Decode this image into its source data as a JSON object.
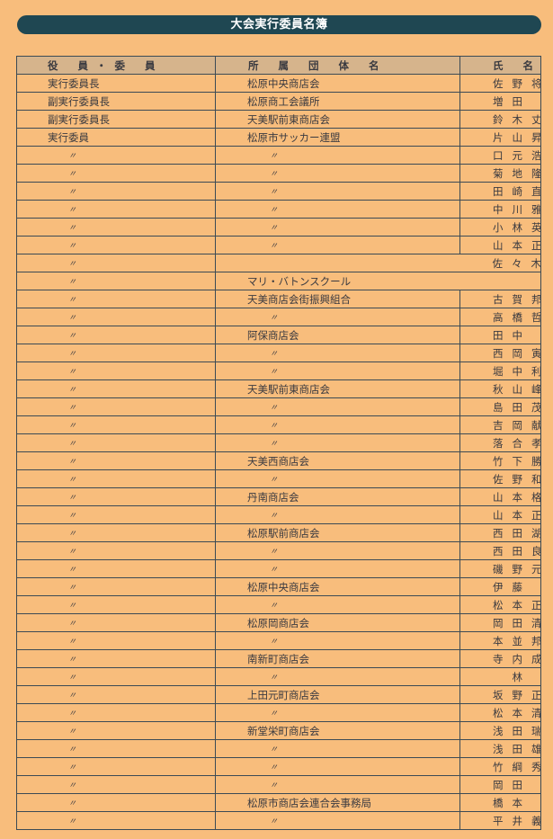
{
  "title": "大会実行委員名簿",
  "headers": [
    "役 員・委 員",
    "所 属 団 体 名",
    "氏 名"
  ],
  "rows": [
    [
      "実行委員長",
      "松原中央商店会",
      "佐野将身"
    ],
    [
      "副実行委員長",
      "松原商工会議所",
      "増田　穎"
    ],
    [
      "副実行委員長",
      "天美駅前東商店会",
      "鈴木丈夫"
    ],
    [
      "実行委員",
      "松原市サッカー連盟",
      "片山昇一"
    ],
    [
      "〃",
      "〃",
      "口元浩二"
    ],
    [
      "〃",
      "〃",
      "菊地隆之"
    ],
    [
      "〃",
      "〃",
      "田崎直子"
    ],
    [
      "〃",
      "〃",
      "中川雅己"
    ],
    [
      "〃",
      "〃",
      "小林英一"
    ],
    [
      "〃",
      "〃",
      "山本正憲"
    ],
    [
      "〃",
      "",
      "佐々木敏郎"
    ],
    [
      "〃",
      "マリ・バトンスクール",
      ""
    ],
    [
      "〃",
      "天美商店会街振興組合",
      "古賀邦夫"
    ],
    [
      "〃",
      "〃",
      "高橋哲男"
    ],
    [
      "〃",
      "阿保商店会",
      "田中　武"
    ],
    [
      "〃",
      "〃",
      "西岡寅三"
    ],
    [
      "〃",
      "〃",
      "堀中利幸"
    ],
    [
      "〃",
      "天美駅前東商店会",
      "秋山峰夫"
    ],
    [
      "〃",
      "〃",
      "島田茂信"
    ],
    [
      "〃",
      "〃",
      "吉岡献二"
    ],
    [
      "〃",
      "〃",
      "落合孝一"
    ],
    [
      "〃",
      "天美西商店会",
      "竹下勝雄"
    ],
    [
      "〃",
      "〃",
      "佐野和男"
    ],
    [
      "〃",
      "丹南商店会",
      "山本格志"
    ],
    [
      "〃",
      "〃",
      "山本正信"
    ],
    [
      "〃",
      "松原駅前商店会",
      "西田湖司"
    ],
    [
      "〃",
      "〃",
      "西田良平"
    ],
    [
      "〃",
      "〃",
      "磯野元三"
    ],
    [
      "〃",
      "松原中央商店会",
      "伊藤　稔"
    ],
    [
      "〃",
      "〃",
      "松本正樹"
    ],
    [
      "〃",
      "松原岡商店会",
      "岡田清臣"
    ],
    [
      "〃",
      "〃",
      "本並邦价"
    ],
    [
      "〃",
      "南新町商店会",
      "寺内成義"
    ],
    [
      "〃",
      "〃",
      "　林　信男"
    ],
    [
      "〃",
      "上田元町商店会",
      "坂野正澄"
    ],
    [
      "〃",
      "〃",
      "松本清一"
    ],
    [
      "〃",
      "新堂栄町商店会",
      "浅田瑞穂"
    ],
    [
      "〃",
      "〃",
      "浅田雄次"
    ],
    [
      "〃",
      "〃",
      "竹綱秀之"
    ],
    [
      "〃",
      "〃",
      "岡田　淳"
    ],
    [
      "〃",
      "松原市商店会連合会事務局",
      "橋本　正"
    ],
    [
      "〃",
      "〃",
      "平井義彦"
    ]
  ]
}
